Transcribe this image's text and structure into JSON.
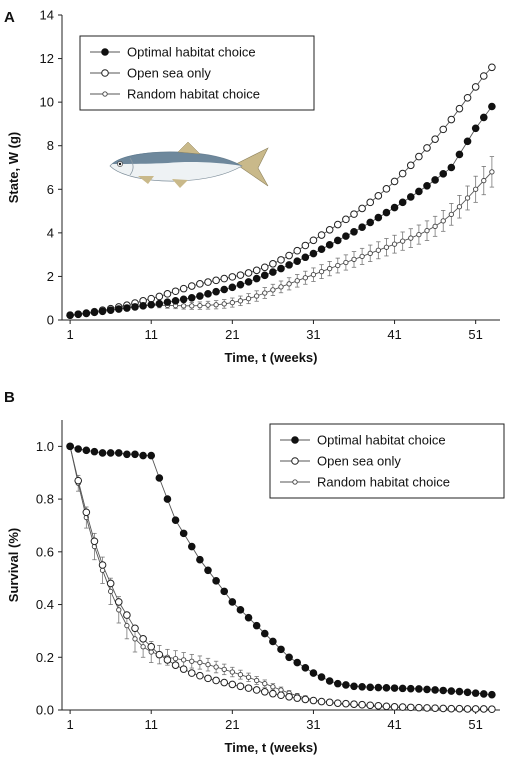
{
  "figure": {
    "fish_colors": {
      "back": "#5f7c92",
      "belly": "#eef2f4",
      "fin": "#c9b98a"
    }
  },
  "chart_data": [
    {
      "panel": "A",
      "type": "line",
      "xlabel": "Time, t (weeks)",
      "ylabel": "State, W (g)",
      "xlim": [
        0,
        54
      ],
      "ylim": [
        0,
        14
      ],
      "xticks": [
        1,
        11,
        21,
        31,
        41,
        51
      ],
      "yticks": [
        0,
        2,
        4,
        6,
        8,
        10,
        12,
        14
      ],
      "legend_position": "top-left",
      "x": [
        1,
        2,
        3,
        4,
        5,
        6,
        7,
        8,
        9,
        10,
        11,
        12,
        13,
        14,
        15,
        16,
        17,
        18,
        19,
        20,
        21,
        22,
        23,
        24,
        25,
        26,
        27,
        28,
        29,
        30,
        31,
        32,
        33,
        34,
        35,
        36,
        37,
        38,
        39,
        40,
        41,
        42,
        43,
        44,
        45,
        46,
        47,
        48,
        49,
        50,
        51,
        52,
        53
      ],
      "series": [
        {
          "name": "Optimal habitat choice",
          "marker": "filled",
          "values": [
            0.22,
            0.26,
            0.3,
            0.35,
            0.4,
            0.45,
            0.5,
            0.55,
            0.6,
            0.65,
            0.7,
            0.75,
            0.82,
            0.88,
            0.95,
            1.02,
            1.1,
            1.2,
            1.3,
            1.4,
            1.5,
            1.62,
            1.75,
            1.9,
            2.05,
            2.2,
            2.36,
            2.53,
            2.7,
            2.88,
            3.05,
            3.25,
            3.45,
            3.65,
            3.85,
            4.05,
            4.26,
            4.48,
            4.7,
            4.93,
            5.16,
            5.4,
            5.65,
            5.9,
            6.16,
            6.43,
            6.71,
            7.0,
            7.6,
            8.2,
            8.8,
            9.3,
            9.8
          ]
        },
        {
          "name": "Open sea only",
          "marker": "open",
          "values": [
            0.22,
            0.27,
            0.32,
            0.38,
            0.45,
            0.52,
            0.6,
            0.68,
            0.78,
            0.88,
            0.98,
            1.08,
            1.2,
            1.32,
            1.44,
            1.56,
            1.66,
            1.74,
            1.82,
            1.9,
            1.98,
            2.06,
            2.16,
            2.28,
            2.42,
            2.58,
            2.76,
            2.96,
            3.18,
            3.42,
            3.66,
            3.9,
            4.14,
            4.38,
            4.62,
            4.86,
            5.12,
            5.4,
            5.7,
            6.02,
            6.36,
            6.72,
            7.1,
            7.5,
            7.9,
            8.3,
            8.75,
            9.2,
            9.7,
            10.2,
            10.7,
            11.2,
            11.6
          ]
        },
        {
          "name": "Random habitat choice",
          "marker": "small-open",
          "values": [
            0.2,
            0.25,
            0.3,
            0.35,
            0.4,
            0.46,
            0.52,
            0.58,
            0.62,
            0.66,
            0.68,
            0.68,
            0.67,
            0.66,
            0.65,
            0.65,
            0.66,
            0.68,
            0.7,
            0.74,
            0.8,
            0.88,
            0.98,
            1.1,
            1.24,
            1.38,
            1.52,
            1.66,
            1.8,
            1.94,
            2.08,
            2.22,
            2.36,
            2.5,
            2.64,
            2.78,
            2.92,
            3.06,
            3.2,
            3.34,
            3.48,
            3.62,
            3.76,
            3.92,
            4.1,
            4.3,
            4.55,
            4.85,
            5.2,
            5.6,
            6.0,
            6.4,
            6.8
          ],
          "error": [
            0.02,
            0.03,
            0.03,
            0.04,
            0.05,
            0.06,
            0.07,
            0.08,
            0.09,
            0.1,
            0.11,
            0.12,
            0.13,
            0.14,
            0.15,
            0.16,
            0.17,
            0.18,
            0.19,
            0.2,
            0.21,
            0.22,
            0.23,
            0.24,
            0.25,
            0.26,
            0.27,
            0.28,
            0.29,
            0.3,
            0.31,
            0.32,
            0.33,
            0.34,
            0.35,
            0.36,
            0.37,
            0.38,
            0.39,
            0.4,
            0.41,
            0.42,
            0.43,
            0.44,
            0.45,
            0.46,
            0.48,
            0.5,
            0.52,
            0.55,
            0.6,
            0.65,
            0.7
          ]
        }
      ]
    },
    {
      "panel": "B",
      "type": "line",
      "xlabel": "Time, t (weeks)",
      "ylabel": "Survival (%)",
      "xlim": [
        0,
        54
      ],
      "ylim": [
        0,
        1.1
      ],
      "xticks": [
        1,
        11,
        21,
        31,
        41,
        51
      ],
      "yticks": [
        0.0,
        0.2,
        0.4,
        0.6,
        0.8,
        1.0
      ],
      "ytick_labels": [
        "0.0",
        "0.2",
        "0.4",
        "0.6",
        "0.8",
        "1.0"
      ],
      "legend_position": "top-right",
      "x": [
        1,
        2,
        3,
        4,
        5,
        6,
        7,
        8,
        9,
        10,
        11,
        12,
        13,
        14,
        15,
        16,
        17,
        18,
        19,
        20,
        21,
        22,
        23,
        24,
        25,
        26,
        27,
        28,
        29,
        30,
        31,
        32,
        33,
        34,
        35,
        36,
        37,
        38,
        39,
        40,
        41,
        42,
        43,
        44,
        45,
        46,
        47,
        48,
        49,
        50,
        51,
        52,
        53
      ],
      "series": [
        {
          "name": "Optimal habitat choice",
          "marker": "filled",
          "values": [
            1.0,
            0.99,
            0.985,
            0.98,
            0.975,
            0.975,
            0.975,
            0.97,
            0.97,
            0.965,
            0.965,
            0.88,
            0.8,
            0.72,
            0.67,
            0.62,
            0.57,
            0.53,
            0.49,
            0.45,
            0.41,
            0.38,
            0.35,
            0.32,
            0.29,
            0.26,
            0.23,
            0.2,
            0.18,
            0.16,
            0.14,
            0.125,
            0.11,
            0.1,
            0.095,
            0.09,
            0.088,
            0.086,
            0.085,
            0.084,
            0.083,
            0.082,
            0.081,
            0.08,
            0.078,
            0.076,
            0.074,
            0.072,
            0.07,
            0.067,
            0.064,
            0.061,
            0.058
          ]
        },
        {
          "name": "Open sea only",
          "marker": "open",
          "values": [
            1.0,
            0.87,
            0.75,
            0.64,
            0.55,
            0.48,
            0.41,
            0.36,
            0.31,
            0.27,
            0.24,
            0.21,
            0.19,
            0.17,
            0.155,
            0.14,
            0.13,
            0.12,
            0.112,
            0.104,
            0.097,
            0.09,
            0.083,
            0.076,
            0.069,
            0.062,
            0.056,
            0.05,
            0.045,
            0.04,
            0.036,
            0.032,
            0.029,
            0.026,
            0.024,
            0.022,
            0.02,
            0.018,
            0.016,
            0.014,
            0.012,
            0.011,
            0.01,
            0.009,
            0.008,
            0.007,
            0.006,
            0.005,
            0.005,
            0.004,
            0.004,
            0.004,
            0.003
          ]
        },
        {
          "name": "Random habitat choice",
          "marker": "small-open",
          "values": [
            1.0,
            0.86,
            0.73,
            0.62,
            0.53,
            0.45,
            0.38,
            0.32,
            0.27,
            0.24,
            0.22,
            0.21,
            0.2,
            0.195,
            0.19,
            0.185,
            0.18,
            0.172,
            0.163,
            0.154,
            0.144,
            0.134,
            0.124,
            0.112,
            0.1,
            0.088,
            0.076,
            0.064,
            0.054,
            0.046,
            0.039,
            0.033,
            0.028,
            0.024,
            0.021,
            0.018,
            0.016,
            0.014,
            0.012,
            0.011,
            0.01,
            0.009,
            0.008,
            0.007,
            0.006,
            0.006,
            0.005,
            0.005,
            0.004,
            0.004,
            0.004,
            0.003,
            0.003
          ],
          "error": [
            0.0,
            0.03,
            0.04,
            0.05,
            0.05,
            0.05,
            0.05,
            0.05,
            0.05,
            0.04,
            0.04,
            0.035,
            0.03,
            0.03,
            0.028,
            0.026,
            0.025,
            0.024,
            0.022,
            0.02,
            0.018,
            0.017,
            0.016,
            0.015,
            0.014,
            0.012,
            0.011,
            0.01,
            0.009,
            0.008,
            0.007,
            0.006,
            0.006,
            0.005,
            0.005,
            0.004,
            0.004,
            0.003,
            0.003,
            0.003,
            0.002,
            0.002,
            0.002,
            0.002,
            0.002,
            0.002,
            0.002,
            0.002,
            0.002,
            0.002,
            0.002,
            0.002,
            0.002
          ]
        }
      ]
    }
  ]
}
